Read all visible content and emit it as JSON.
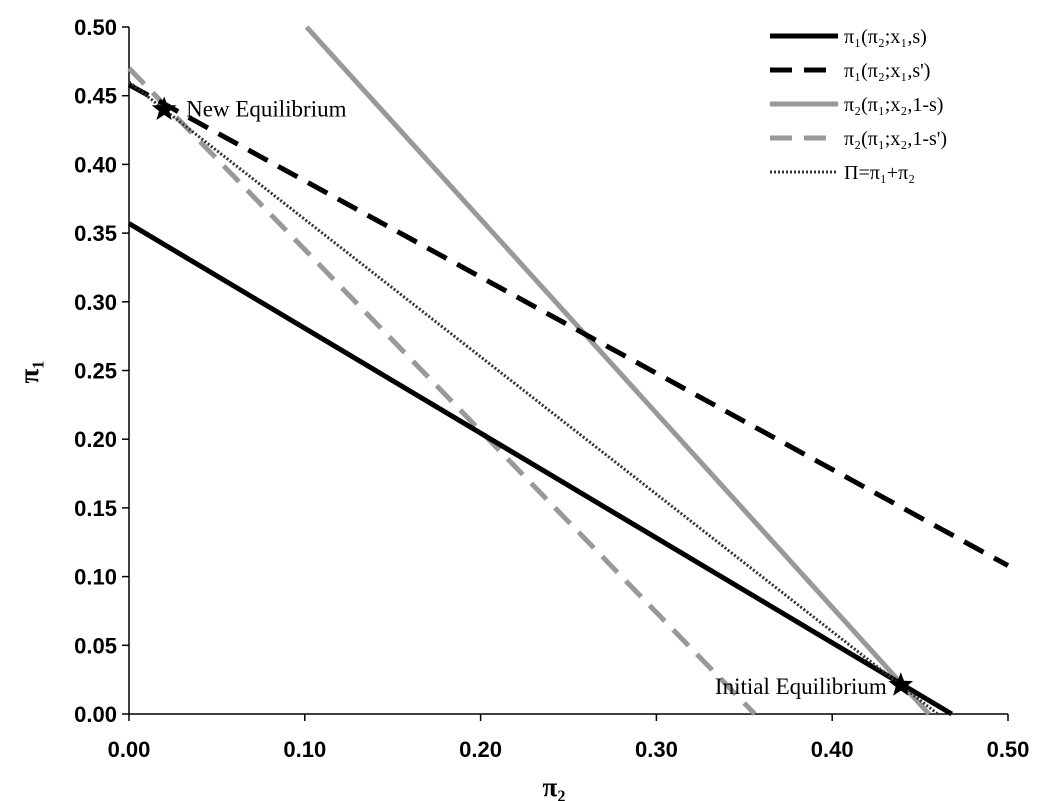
{
  "chart_data": {
    "type": "line",
    "xlabel": "π₂",
    "ylabel": "π₁",
    "xlim": [
      0,
      0.5
    ],
    "ylim": [
      0,
      0.5
    ],
    "xticks": [
      "0.00",
      "0.10",
      "0.20",
      "0.30",
      "0.40",
      "0.50"
    ],
    "yticks": [
      "0.00",
      "0.05",
      "0.10",
      "0.15",
      "0.20",
      "0.25",
      "0.30",
      "0.35",
      "0.40",
      "0.45",
      "0.50"
    ],
    "grid": false,
    "legend_position": "top-right",
    "series": [
      {
        "name": "π₁(π₂;x₁,s)",
        "style": "solid",
        "color": "#000000",
        "points": [
          [
            0.0,
            0.357
          ],
          [
            0.468,
            0.0
          ]
        ]
      },
      {
        "name": "π₁(π₂;x₁,s')",
        "style": "dashed",
        "color": "#000000",
        "points": [
          [
            0.0,
            0.458
          ],
          [
            0.5,
            0.108
          ]
        ]
      },
      {
        "name": "π₂(π₁;x₂,1-s)",
        "style": "solid",
        "color": "#999999",
        "points": [
          [
            0.101,
            0.5
          ],
          [
            0.455,
            0.0
          ]
        ]
      },
      {
        "name": "π₂(π₁;x₂,1-s')",
        "style": "dashed",
        "color": "#999999",
        "points": [
          [
            0.0,
            0.47
          ],
          [
            0.356,
            0.0
          ]
        ]
      },
      {
        "name": "Π=π₁+π₂",
        "style": "dotted",
        "color": "#333333",
        "points": [
          [
            0.0,
            0.46
          ],
          [
            0.46,
            0.0
          ]
        ]
      }
    ],
    "annotations": [
      {
        "text": "New Equilibrium",
        "x": 0.02,
        "y": 0.44,
        "marker": "star"
      },
      {
        "text": "Initial Equilibrium",
        "x": 0.439,
        "y": 0.021,
        "marker": "star"
      }
    ]
  }
}
